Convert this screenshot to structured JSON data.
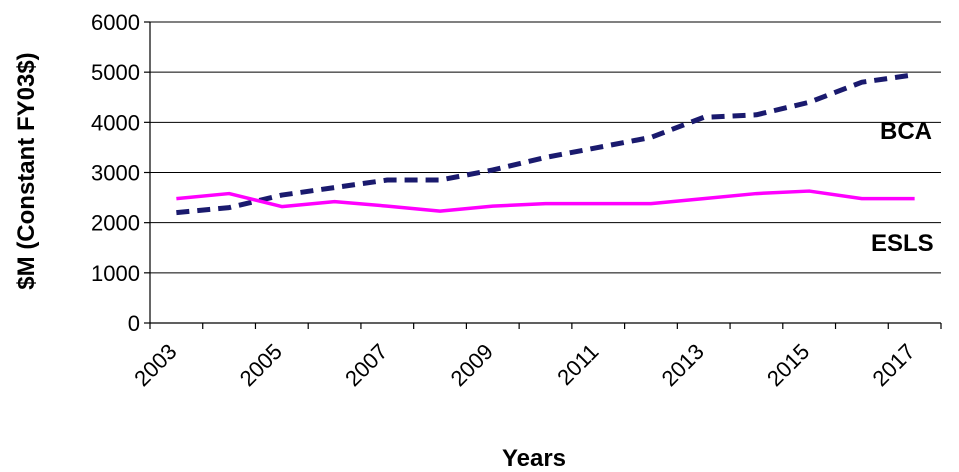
{
  "chart_data": {
    "type": "line",
    "title": "",
    "xlabel": "Years",
    "ylabel": "$M (Constant FY03$)",
    "ylim": [
      0,
      6000
    ],
    "yticks": [
      0,
      1000,
      2000,
      3000,
      4000,
      5000,
      6000
    ],
    "x": [
      2003,
      2004,
      2005,
      2006,
      2007,
      2008,
      2009,
      2010,
      2011,
      2012,
      2013,
      2014,
      2015,
      2016,
      2017
    ],
    "xtick_labels": [
      "2003",
      "2005",
      "2007",
      "2009",
      "2011",
      "2013",
      "2015",
      "2017"
    ],
    "grid": "horizontal",
    "series": [
      {
        "name": "BCA",
        "style": "dashed",
        "color": "#1a1a6e",
        "values": [
          2200,
          2300,
          2550,
          2700,
          2850,
          2850,
          3050,
          3300,
          3500,
          3700,
          4100,
          4150,
          4400,
          4800,
          4950
        ]
      },
      {
        "name": "ESLS",
        "style": "solid",
        "color": "#ff00ff",
        "values": [
          2480,
          2580,
          2320,
          2420,
          2330,
          2230,
          2330,
          2380,
          2380,
          2380,
          2480,
          2580,
          2630,
          2480,
          2480
        ]
      }
    ]
  }
}
